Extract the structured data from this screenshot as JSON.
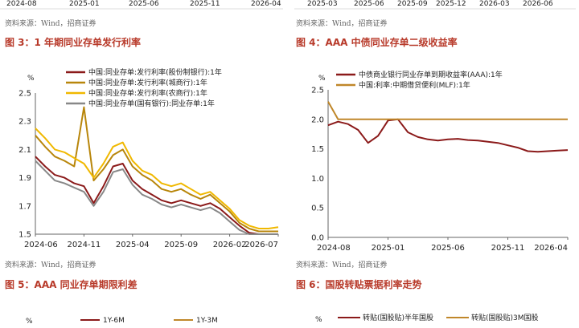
{
  "top_strip": {
    "left_ticks": [
      "2024-08",
      "2025-01",
      "2025-06",
      "2025-11",
      "2026-04"
    ],
    "right_ticks": [
      "2025-03",
      "2025-06",
      "2025-09",
      "2025-12",
      "2026-03",
      "2026-06"
    ]
  },
  "source_label": "资料来源：Wind，招商证券",
  "colors": {
    "title_red": "#b83a2a",
    "maroon": "#8b1a1a",
    "gold": "#b8860b",
    "yellow": "#f0b800",
    "gray": "#888888",
    "dark_gold": "#c0872a"
  },
  "figures": [
    {
      "title": "图 3：1 年期同业存单发行利率",
      "unit": "%"
    },
    {
      "title": "图 4：AAA 中债同业存单二级收益率",
      "unit": "%"
    },
    {
      "title": "图 5：AAA 同业存单期限利差",
      "unit": "%",
      "legend": [
        "1Y-6M",
        "1Y-3M"
      ]
    },
    {
      "title": "图 6：国股转贴票据利率走势",
      "unit": "%",
      "legend": [
        "转贴(国股贴)半年国股",
        "转贴(国股贴)3M国股"
      ]
    }
  ],
  "chart_data": [
    {
      "type": "line",
      "title": "",
      "ylabel": "%",
      "ylim": [
        1.5,
        2.5
      ],
      "yticks": [
        "2.5",
        "2.3",
        "2.1",
        "1.9",
        "1.7",
        "1.5"
      ],
      "xticks": [
        "2024-06",
        "2024-11",
        "2025-04",
        "2025-09",
        "2026-02",
        "2026-07"
      ],
      "x": [
        "2024-06",
        "2024-07",
        "2024-08",
        "2024-09",
        "2024-10",
        "2024-11",
        "2024-12",
        "2025-01",
        "2025-02",
        "2025-03",
        "2025-04",
        "2025-05",
        "2025-06",
        "2025-07",
        "2025-08",
        "2025-09",
        "2025-10",
        "2025-11",
        "2025-12",
        "2026-01",
        "2026-02",
        "2026-03",
        "2026-04",
        "2026-05",
        "2026-06",
        "2026-07"
      ],
      "series": [
        {
          "name": "中国:同业存单:发行利率(股份制银行):1年",
          "color": "#8b1a1a",
          "values": [
            2.05,
            1.98,
            1.92,
            1.9,
            1.86,
            1.84,
            1.72,
            1.84,
            1.98,
            2.0,
            1.88,
            1.82,
            1.78,
            1.74,
            1.72,
            1.74,
            1.72,
            1.7,
            1.72,
            1.68,
            1.62,
            1.56,
            1.51,
            1.5,
            1.5,
            1.5
          ]
        },
        {
          "name": "中国:同业存单:发行利率(城商行):1年",
          "color": "#b8860b",
          "values": [
            2.2,
            2.12,
            2.05,
            2.02,
            1.98,
            2.4,
            1.88,
            1.96,
            2.06,
            2.1,
            1.98,
            1.92,
            1.88,
            1.82,
            1.8,
            1.82,
            1.78,
            1.75,
            1.78,
            1.72,
            1.66,
            1.58,
            1.54,
            1.52,
            1.52,
            1.52
          ]
        },
        {
          "name": "中国:同业存单:发行利率(农商行):1年",
          "color": "#f0b800",
          "values": [
            2.25,
            2.18,
            2.1,
            2.08,
            2.04,
            2.0,
            1.9,
            2.0,
            2.12,
            2.15,
            2.02,
            1.95,
            1.92,
            1.86,
            1.84,
            1.86,
            1.82,
            1.78,
            1.8,
            1.74,
            1.68,
            1.6,
            1.56,
            1.54,
            1.54,
            1.55
          ]
        },
        {
          "name": "中国:同业存单(国有银行):同业存单:1年",
          "color": "#888888",
          "values": [
            2.02,
            1.95,
            1.88,
            1.86,
            1.83,
            1.8,
            1.7,
            1.8,
            1.94,
            1.96,
            1.85,
            1.78,
            1.75,
            1.71,
            1.69,
            1.71,
            1.69,
            1.67,
            1.69,
            1.65,
            1.59,
            1.53,
            1.5,
            1.5,
            1.5,
            1.5
          ]
        }
      ]
    },
    {
      "type": "line",
      "title": "",
      "ylabel": "%",
      "ylim": [
        0.0,
        2.5
      ],
      "yticks": [
        "2.5",
        "2.0",
        "1.5",
        "1.0",
        "0.5",
        "0.0"
      ],
      "xticks": [
        "2024-08",
        "2025-01",
        "2025-06",
        "2025-11",
        "2026-04"
      ],
      "x": [
        "2024-08",
        "2024-09",
        "2024-10",
        "2024-11",
        "2024-12",
        "2025-01",
        "2025-02",
        "2025-03",
        "2025-04",
        "2025-05",
        "2025-06",
        "2025-07",
        "2025-08",
        "2025-09",
        "2025-10",
        "2025-11",
        "2025-12",
        "2026-01",
        "2026-02",
        "2026-03",
        "2026-04",
        "2026-05",
        "2026-06",
        "2026-07",
        "2026-08"
      ],
      "series": [
        {
          "name": "中债商业银行同业存单到期收益率(AAA):1年",
          "color": "#8b1a1a",
          "values": [
            1.9,
            1.96,
            1.92,
            1.82,
            1.6,
            1.72,
            1.98,
            2.0,
            1.78,
            1.7,
            1.66,
            1.64,
            1.66,
            1.67,
            1.65,
            1.64,
            1.62,
            1.6,
            1.56,
            1.52,
            1.46,
            1.45,
            1.46,
            1.47,
            1.48
          ]
        },
        {
          "name": "中国:利率:中期借贷便利(MLF):1年",
          "color": "#c0872a",
          "values": [
            2.3,
            2.0,
            2.0,
            2.0,
            2.0,
            2.0,
            2.0,
            2.0,
            2.0,
            2.0,
            2.0,
            2.0,
            2.0,
            2.0,
            2.0,
            2.0,
            2.0,
            2.0,
            2.0,
            2.0,
            2.0,
            2.0,
            2.0,
            2.0,
            2.0
          ]
        }
      ]
    }
  ]
}
